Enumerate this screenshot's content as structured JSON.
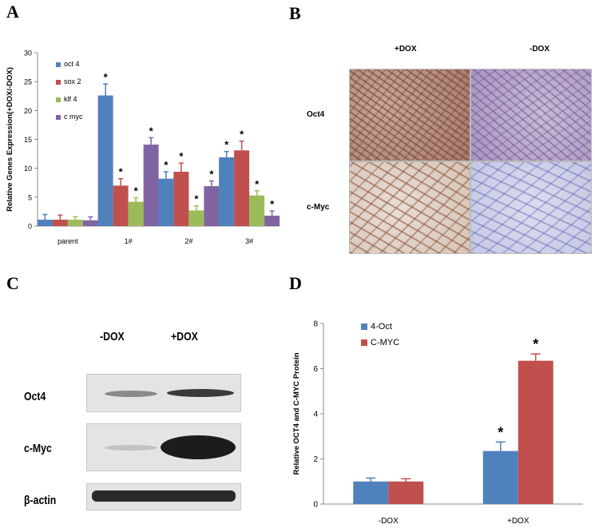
{
  "panels": {
    "a": "A",
    "b": "B",
    "c": "C",
    "d": "D"
  },
  "chart_data": [
    {
      "panel": "A",
      "type": "bar",
      "title": "",
      "xlabel": "",
      "ylabel": "Relative Genes Expression(+DOX/-DOX)",
      "ylim": [
        0,
        30
      ],
      "yticks": [
        0,
        5,
        10,
        15,
        20,
        25,
        30
      ],
      "grid": false,
      "legend": "top-left",
      "categories": [
        "parent",
        "1#",
        "2#",
        "3#"
      ],
      "series": [
        {
          "name": "oct 4",
          "color": "#4f81bd",
          "values": [
            1.1,
            22.6,
            8.2,
            11.9
          ],
          "errors": [
            0.9,
            2.0,
            1.2,
            1.0
          ],
          "significant": [
            false,
            true,
            true,
            true
          ]
        },
        {
          "name": "sox 2",
          "color": "#c0504d",
          "values": [
            1.1,
            7.0,
            9.4,
            13.1
          ],
          "errors": [
            0.8,
            1.2,
            1.5,
            1.6
          ],
          "significant": [
            false,
            true,
            true,
            true
          ]
        },
        {
          "name": "klf 4",
          "color": "#9bbb59",
          "values": [
            1.1,
            4.2,
            2.7,
            5.3
          ],
          "errors": [
            0.5,
            0.7,
            0.8,
            0.8
          ],
          "significant": [
            false,
            true,
            true,
            true
          ]
        },
        {
          "name": "c myc",
          "color": "#8064a2",
          "values": [
            1.0,
            14.1,
            6.9,
            1.8
          ],
          "errors": [
            0.6,
            1.2,
            0.9,
            0.8
          ],
          "significant": [
            false,
            true,
            true,
            true
          ]
        }
      ],
      "significance_marker": "*"
    },
    {
      "panel": "D",
      "type": "bar",
      "title": "",
      "xlabel": "",
      "ylabel": "Relative OCT4 and C-MYC Protein",
      "ylim": [
        0,
        8
      ],
      "yticks": [
        0,
        2,
        4,
        6,
        8
      ],
      "grid": false,
      "legend": "top-left",
      "categories": [
        "-DOX",
        "+DOX"
      ],
      "series": [
        {
          "name": "4-Oct",
          "color": "#4f81bd",
          "values": [
            1.0,
            2.35
          ],
          "errors": [
            0.15,
            0.4
          ],
          "significant": [
            false,
            true
          ]
        },
        {
          "name": "C-MYC",
          "color": "#c0504d",
          "values": [
            1.0,
            6.35
          ],
          "errors": [
            0.12,
            0.3
          ],
          "significant": [
            false,
            true
          ]
        }
      ],
      "significance_marker": "*"
    }
  ],
  "micrograph": {
    "columns": [
      "+DOX",
      "-DOX"
    ],
    "rows": [
      "Oct4",
      "c-Myc"
    ]
  },
  "western_blot": {
    "columns": [
      "-DOX",
      "+DOX"
    ],
    "rows": [
      "Oct4",
      "c-Myc",
      "β-actin"
    ]
  }
}
